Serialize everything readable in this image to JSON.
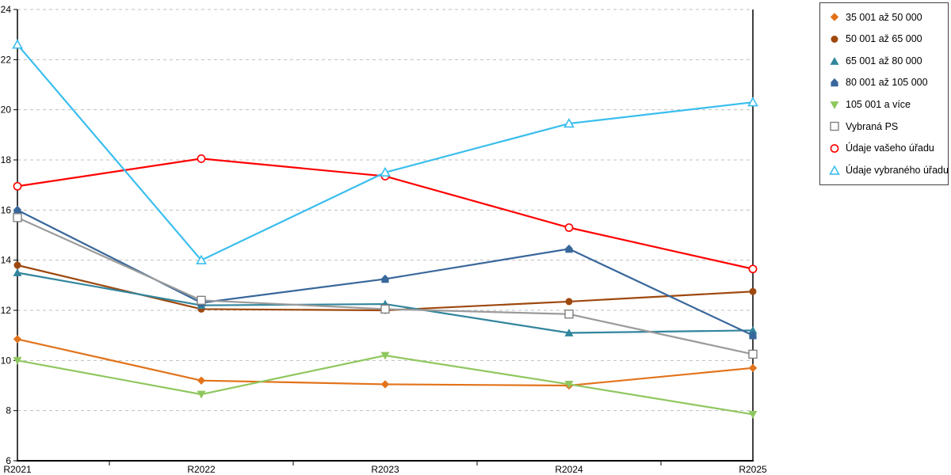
{
  "chart_data": {
    "type": "line",
    "title": "",
    "xlabel": "",
    "ylabel": "",
    "categories": [
      "R2021",
      "R2022",
      "R2023",
      "R2024",
      "R2025"
    ],
    "ylim": [
      6,
      24
    ],
    "ytick_step": 2,
    "y_tick_labels": [
      "24",
      "22",
      "20",
      "18",
      "16",
      "14",
      "12",
      "10",
      "8",
      "6"
    ],
    "grid": "horizontal-dashed",
    "legend_position": "right",
    "colors": {
      "grid": "#BFBFBF",
      "axis": "#000000",
      "legend_border": "#404040",
      "background": "#FFFFFF"
    },
    "series": [
      {
        "name": "35 001 až 50 000",
        "color": "#E2731B",
        "marker": "diamond",
        "fill": "solid",
        "values": [
          10.85,
          9.2,
          9.05,
          9.0,
          9.7
        ]
      },
      {
        "name": "50 001 až 65 000",
        "color": "#9E480E",
        "marker": "circle",
        "fill": "solid",
        "values": [
          13.8,
          12.05,
          12.0,
          12.35,
          12.75
        ]
      },
      {
        "name": "65 001 až 80 000",
        "color": "#31859C",
        "marker": "triangle-up",
        "fill": "solid",
        "values": [
          13.5,
          12.2,
          12.25,
          11.1,
          11.2
        ]
      },
      {
        "name": "80 001 až 105 000",
        "color": "#38679B",
        "marker": "pentagon",
        "fill": "solid",
        "values": [
          16.0,
          12.3,
          13.25,
          14.45,
          11.0
        ]
      },
      {
        "name": "105 001 a více",
        "color": "#8FC75F",
        "marker": "triangle-down",
        "fill": "solid",
        "values": [
          10.0,
          8.65,
          10.2,
          9.05,
          7.85
        ]
      },
      {
        "name": "Vybraná PS",
        "color": "#9B9B9B",
        "marker": "square",
        "fill": "open",
        "values": [
          15.7,
          12.4,
          12.05,
          11.85,
          10.25
        ]
      },
      {
        "name": "Údaje vašeho úřadu",
        "color": "#FF0000",
        "marker": "circle",
        "fill": "open",
        "values": [
          16.95,
          18.05,
          17.35,
          15.3,
          13.65
        ]
      },
      {
        "name": "Údaje vybraného úřadu",
        "color": "#3ABEEE",
        "marker": "triangle-up",
        "fill": "open",
        "values": [
          22.6,
          14.0,
          17.5,
          19.45,
          20.3
        ]
      }
    ]
  }
}
